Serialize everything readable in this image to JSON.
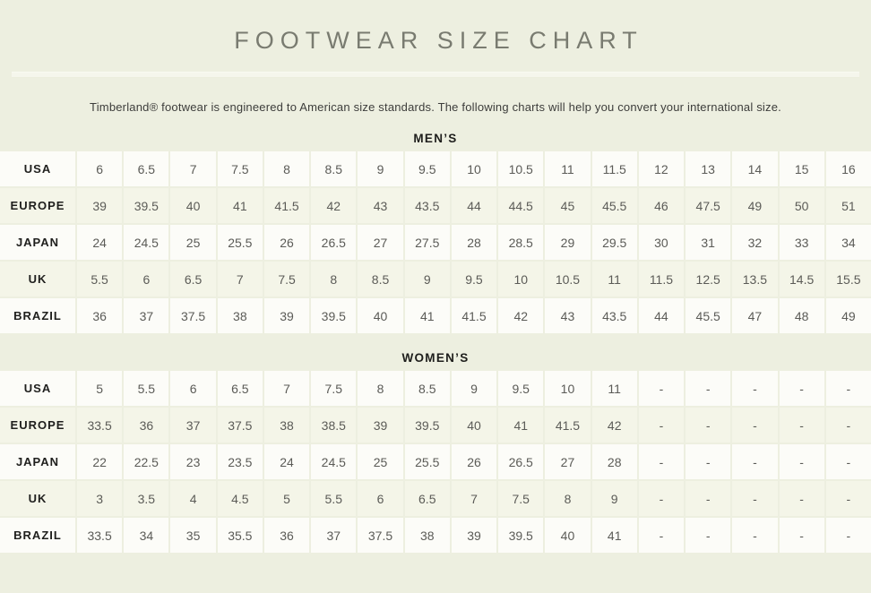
{
  "header": {
    "title": "FOOTWEAR SIZE CHART",
    "subtitle": "Timberland® footwear is engineered to American size standards. The following charts will help you convert your international size."
  },
  "colors": {
    "page_background": "#edefe0",
    "row_white": "#fcfcf8",
    "row_cream": "#f4f5e8",
    "title_text": "#797b70",
    "subtitle_text": "#3d3d3b",
    "label_text": "#1f1f1d",
    "value_text": "#5b5b57"
  },
  "sections": [
    {
      "heading": "MEN’S",
      "rows": [
        {
          "label": "USA",
          "values": [
            "6",
            "6.5",
            "7",
            "7.5",
            "8",
            "8.5",
            "9",
            "9.5",
            "10",
            "10.5",
            "11",
            "11.5",
            "12",
            "13",
            "14",
            "15",
            "16"
          ]
        },
        {
          "label": "EUROPE",
          "values": [
            "39",
            "39.5",
            "40",
            "41",
            "41.5",
            "42",
            "43",
            "43.5",
            "44",
            "44.5",
            "45",
            "45.5",
            "46",
            "47.5",
            "49",
            "50",
            "51"
          ]
        },
        {
          "label": "JAPAN",
          "values": [
            "24",
            "24.5",
            "25",
            "25.5",
            "26",
            "26.5",
            "27",
            "27.5",
            "28",
            "28.5",
            "29",
            "29.5",
            "30",
            "31",
            "32",
            "33",
            "34"
          ]
        },
        {
          "label": "UK",
          "values": [
            "5.5",
            "6",
            "6.5",
            "7",
            "7.5",
            "8",
            "8.5",
            "9",
            "9.5",
            "10",
            "10.5",
            "11",
            "11.5",
            "12.5",
            "13.5",
            "14.5",
            "15.5"
          ]
        },
        {
          "label": "BRAZIL",
          "values": [
            "36",
            "37",
            "37.5",
            "38",
            "39",
            "39.5",
            "40",
            "41",
            "41.5",
            "42",
            "43",
            "43.5",
            "44",
            "45.5",
            "47",
            "48",
            "49"
          ]
        }
      ]
    },
    {
      "heading": "WOMEN’S",
      "rows": [
        {
          "label": "USA",
          "values": [
            "5",
            "5.5",
            "6",
            "6.5",
            "7",
            "7.5",
            "8",
            "8.5",
            "9",
            "9.5",
            "10",
            "11",
            "-",
            "-",
            "-",
            "-",
            "-"
          ]
        },
        {
          "label": "EUROPE",
          "values": [
            "33.5",
            "36",
            "37",
            "37.5",
            "38",
            "38.5",
            "39",
            "39.5",
            "40",
            "41",
            "41.5",
            "42",
            "-",
            "-",
            "-",
            "-",
            "-"
          ]
        },
        {
          "label": "JAPAN",
          "values": [
            "22",
            "22.5",
            "23",
            "23.5",
            "24",
            "24.5",
            "25",
            "25.5",
            "26",
            "26.5",
            "27",
            "28",
            "-",
            "-",
            "-",
            "-",
            "-"
          ]
        },
        {
          "label": "UK",
          "values": [
            "3",
            "3.5",
            "4",
            "4.5",
            "5",
            "5.5",
            "6",
            "6.5",
            "7",
            "7.5",
            "8",
            "9",
            "-",
            "-",
            "-",
            "-",
            "-"
          ]
        },
        {
          "label": "BRAZIL",
          "values": [
            "33.5",
            "34",
            "35",
            "35.5",
            "36",
            "37",
            "37.5",
            "38",
            "39",
            "39.5",
            "40",
            "41",
            "-",
            "-",
            "-",
            "-",
            "-"
          ]
        }
      ]
    }
  ]
}
